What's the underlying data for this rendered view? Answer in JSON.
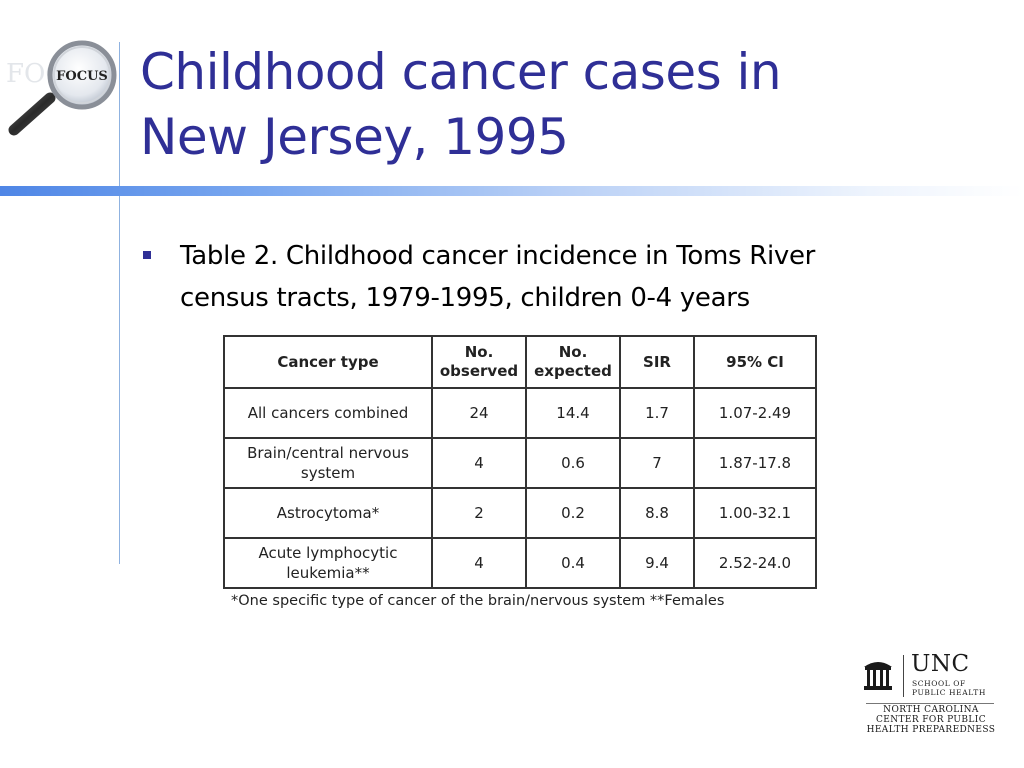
{
  "slide": {
    "title_lines": [
      "Childhood cancer cases in",
      "New Jersey, 1995"
    ],
    "bullet_lines": [
      "Table 2. Childhood cancer incidence in Toms River",
      "census tracts, 1979-1995, children 0-4 years"
    ]
  },
  "focus_logo": {
    "text": "FOCUS",
    "icon": "magnifying-glass-icon"
  },
  "table": {
    "headers": [
      [
        "Cancer type"
      ],
      [
        "No.",
        "observed"
      ],
      [
        "No.",
        "expected"
      ],
      [
        "SIR"
      ],
      [
        "95% CI"
      ]
    ],
    "rows": [
      {
        "type_lines": [
          "All cancers combined"
        ],
        "observed": "24",
        "expected": "14.4",
        "sir": "1.7",
        "ci": "1.07-2.49"
      },
      {
        "type_lines": [
          "Brain/central nervous",
          "system"
        ],
        "observed": "4",
        "expected": "0.6",
        "sir": "7",
        "ci": "1.87-17.8"
      },
      {
        "type_lines": [
          "Astrocytoma*"
        ],
        "observed": "2",
        "expected": "0.2",
        "sir": "8.8",
        "ci": "1.00-32.1"
      },
      {
        "type_lines": [
          "Acute lymphocytic",
          "leukemia**"
        ],
        "observed": "4",
        "expected": "0.4",
        "sir": "9.4",
        "ci": "2.52-24.0"
      }
    ],
    "footnote": "*One  specific type of cancer of the brain/nervous system  **Females"
  },
  "unc_logo": {
    "name": "UNC",
    "sub_lines": [
      "SCHOOL OF",
      "PUBLIC HEALTH"
    ],
    "center_lines": [
      "NORTH CAROLINA",
      "CENTER FOR PUBLIC",
      "HEALTH PREPAREDNESS"
    ],
    "icon": "old-well-icon"
  },
  "colors": {
    "title": "#2f2f96",
    "accent_bar": "#4f86e6",
    "rule": "#8fb2e0"
  }
}
